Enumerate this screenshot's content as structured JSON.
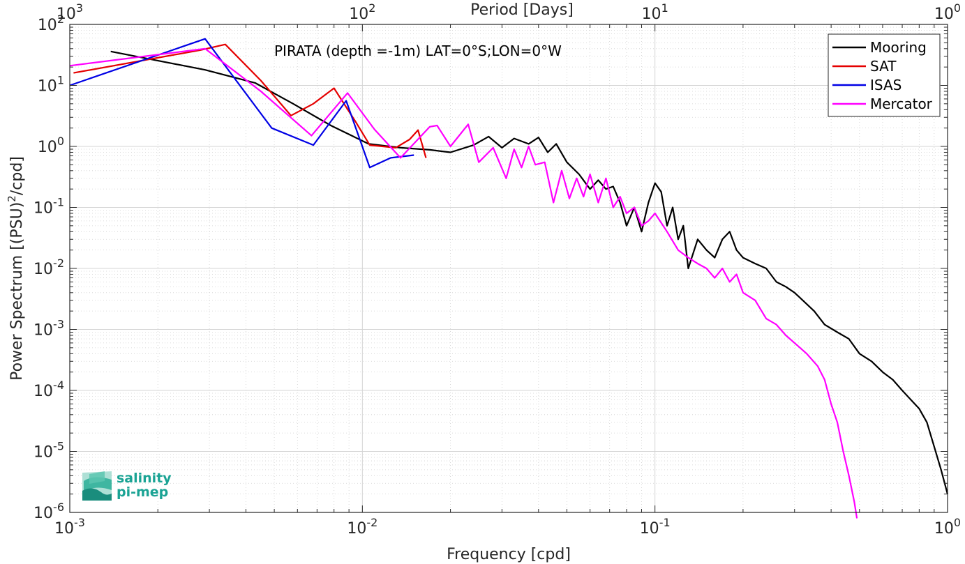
{
  "chart_data": {
    "type": "line",
    "title": "PIRATA (depth =-1m) LAT=0°S;LON=0°W",
    "xlabel": "Frequency [cpd]",
    "ylabel": "Power Spectrum [(PSU)²/cpd]",
    "ylabel_parts": {
      "before": "Power Spectrum [(PSU)",
      "sup": "2",
      "after": "/cpd]"
    },
    "top_xlabel": "Period [Days]",
    "xscale": "log",
    "yscale": "log",
    "xlim": [
      0.001,
      1
    ],
    "ylim": [
      1e-06,
      100
    ],
    "grid": true,
    "legend_position": "top-right",
    "x_ticks": [
      {
        "value": 0.001,
        "base": "10",
        "exp": "-3"
      },
      {
        "value": 0.01,
        "base": "10",
        "exp": "-2"
      },
      {
        "value": 0.1,
        "base": "10",
        "exp": "-1"
      },
      {
        "value": 1,
        "base": "10",
        "exp": "0"
      }
    ],
    "top_ticks": [
      {
        "value": 0.001,
        "base": "10",
        "exp": "3"
      },
      {
        "value": 0.01,
        "base": "10",
        "exp": "2"
      },
      {
        "value": 0.1,
        "base": "10",
        "exp": "1"
      },
      {
        "value": 1,
        "base": "10",
        "exp": "0"
      }
    ],
    "y_ticks": [
      {
        "value": 100,
        "base": "10",
        "exp": "2"
      },
      {
        "value": 10,
        "base": "10",
        "exp": "1"
      },
      {
        "value": 1,
        "base": "10",
        "exp": "0"
      },
      {
        "value": 0.1,
        "base": "10",
        "exp": "-1"
      },
      {
        "value": 0.01,
        "base": "10",
        "exp": "-2"
      },
      {
        "value": 0.001,
        "base": "10",
        "exp": "-3"
      },
      {
        "value": 0.0001,
        "base": "10",
        "exp": "-4"
      },
      {
        "value": 1e-05,
        "base": "10",
        "exp": "-5"
      },
      {
        "value": 1e-06,
        "base": "10",
        "exp": "-6"
      }
    ],
    "series": [
      {
        "name": "Mooring",
        "color": "#000000",
        "points": [
          [
            0.00138,
            36
          ],
          [
            0.0029,
            18
          ],
          [
            0.0043,
            11
          ],
          [
            0.0058,
            5
          ],
          [
            0.0078,
            2.2
          ],
          [
            0.0105,
            1.1
          ],
          [
            0.0135,
            0.95
          ],
          [
            0.017,
            0.88
          ],
          [
            0.02,
            0.8
          ],
          [
            0.024,
            1.05
          ],
          [
            0.027,
            1.45
          ],
          [
            0.03,
            0.95
          ],
          [
            0.033,
            1.35
          ],
          [
            0.037,
            1.1
          ],
          [
            0.04,
            1.4
          ],
          [
            0.043,
            0.8
          ],
          [
            0.046,
            1.1
          ],
          [
            0.05,
            0.55
          ],
          [
            0.055,
            0.35
          ],
          [
            0.06,
            0.2
          ],
          [
            0.064,
            0.28
          ],
          [
            0.068,
            0.2
          ],
          [
            0.072,
            0.22
          ],
          [
            0.076,
            0.12
          ],
          [
            0.08,
            0.05
          ],
          [
            0.085,
            0.1
          ],
          [
            0.09,
            0.04
          ],
          [
            0.095,
            0.12
          ],
          [
            0.1,
            0.25
          ],
          [
            0.105,
            0.18
          ],
          [
            0.11,
            0.05
          ],
          [
            0.115,
            0.1
          ],
          [
            0.12,
            0.03
          ],
          [
            0.125,
            0.05
          ],
          [
            0.13,
            0.01
          ],
          [
            0.14,
            0.03
          ],
          [
            0.15,
            0.02
          ],
          [
            0.16,
            0.015
          ],
          [
            0.17,
            0.03
          ],
          [
            0.18,
            0.04
          ],
          [
            0.19,
            0.02
          ],
          [
            0.2,
            0.015
          ],
          [
            0.22,
            0.012
          ],
          [
            0.24,
            0.01
          ],
          [
            0.26,
            0.006
          ],
          [
            0.28,
            0.005
          ],
          [
            0.3,
            0.004
          ],
          [
            0.32,
            0.003
          ],
          [
            0.35,
            0.002
          ],
          [
            0.38,
            0.0012
          ],
          [
            0.42,
            0.0009
          ],
          [
            0.46,
            0.0007
          ],
          [
            0.5,
            0.0004
          ],
          [
            0.55,
            0.0003
          ],
          [
            0.6,
            0.0002
          ],
          [
            0.65,
            0.00015
          ],
          [
            0.7,
            0.0001
          ],
          [
            0.75,
            7e-05
          ],
          [
            0.8,
            5e-05
          ],
          [
            0.85,
            3e-05
          ],
          [
            0.9,
            1.2e-05
          ],
          [
            0.95,
            5e-06
          ],
          [
            1.0,
            2e-06
          ]
        ]
      },
      {
        "name": "SAT",
        "color": "#e50000",
        "points": [
          [
            0.00103,
            16
          ],
          [
            0.0028,
            38
          ],
          [
            0.0034,
            47
          ],
          [
            0.0045,
            12
          ],
          [
            0.0057,
            3.2
          ],
          [
            0.0068,
            5
          ],
          [
            0.008,
            9
          ],
          [
            0.0095,
            2.5
          ],
          [
            0.0106,
            1.05
          ],
          [
            0.013,
            0.95
          ],
          [
            0.0145,
            1.3
          ],
          [
            0.0155,
            1.85
          ],
          [
            0.0165,
            0.65
          ]
        ]
      },
      {
        "name": "ISAS",
        "color": "#0000e5",
        "points": [
          [
            0.001,
            10
          ],
          [
            0.0029,
            58
          ],
          [
            0.0049,
            2
          ],
          [
            0.0068,
            1.05
          ],
          [
            0.0088,
            5.6
          ],
          [
            0.0106,
            0.45
          ],
          [
            0.0125,
            0.65
          ],
          [
            0.015,
            0.72
          ]
        ]
      },
      {
        "name": "Mercator",
        "color": "#ff00ff",
        "points": [
          [
            0.001,
            21
          ],
          [
            0.0029,
            40
          ],
          [
            0.0045,
            8
          ],
          [
            0.0067,
            1.5
          ],
          [
            0.0089,
            7.5
          ],
          [
            0.011,
            1.9
          ],
          [
            0.0135,
            0.65
          ],
          [
            0.017,
            2.1
          ],
          [
            0.018,
            2.2
          ],
          [
            0.02,
            1.0
          ],
          [
            0.023,
            2.3
          ],
          [
            0.025,
            0.55
          ],
          [
            0.028,
            0.95
          ],
          [
            0.031,
            0.3
          ],
          [
            0.033,
            0.9
          ],
          [
            0.035,
            0.45
          ],
          [
            0.037,
            1.0
          ],
          [
            0.039,
            0.5
          ],
          [
            0.042,
            0.55
          ],
          [
            0.045,
            0.12
          ],
          [
            0.048,
            0.4
          ],
          [
            0.051,
            0.14
          ],
          [
            0.054,
            0.3
          ],
          [
            0.057,
            0.15
          ],
          [
            0.06,
            0.35
          ],
          [
            0.064,
            0.12
          ],
          [
            0.068,
            0.3
          ],
          [
            0.072,
            0.1
          ],
          [
            0.076,
            0.15
          ],
          [
            0.08,
            0.08
          ],
          [
            0.085,
            0.1
          ],
          [
            0.09,
            0.05
          ],
          [
            0.095,
            0.06
          ],
          [
            0.1,
            0.08
          ],
          [
            0.11,
            0.04
          ],
          [
            0.12,
            0.02
          ],
          [
            0.13,
            0.015
          ],
          [
            0.14,
            0.012
          ],
          [
            0.15,
            0.01
          ],
          [
            0.16,
            0.007
          ],
          [
            0.17,
            0.01
          ],
          [
            0.18,
            0.006
          ],
          [
            0.19,
            0.008
          ],
          [
            0.2,
            0.004
          ],
          [
            0.22,
            0.003
          ],
          [
            0.24,
            0.0015
          ],
          [
            0.26,
            0.0012
          ],
          [
            0.28,
            0.0008
          ],
          [
            0.3,
            0.0006
          ],
          [
            0.33,
            0.0004
          ],
          [
            0.36,
            0.00025
          ],
          [
            0.38,
            0.00015
          ],
          [
            0.4,
            6e-05
          ],
          [
            0.42,
            3e-05
          ],
          [
            0.44,
            1e-05
          ],
          [
            0.46,
            4e-06
          ],
          [
            0.48,
            1.5e-06
          ],
          [
            0.49,
            8e-07
          ]
        ]
      }
    ]
  },
  "logo": {
    "line1": "salinity",
    "line2": "pi-mep",
    "color": "#1aa394"
  }
}
